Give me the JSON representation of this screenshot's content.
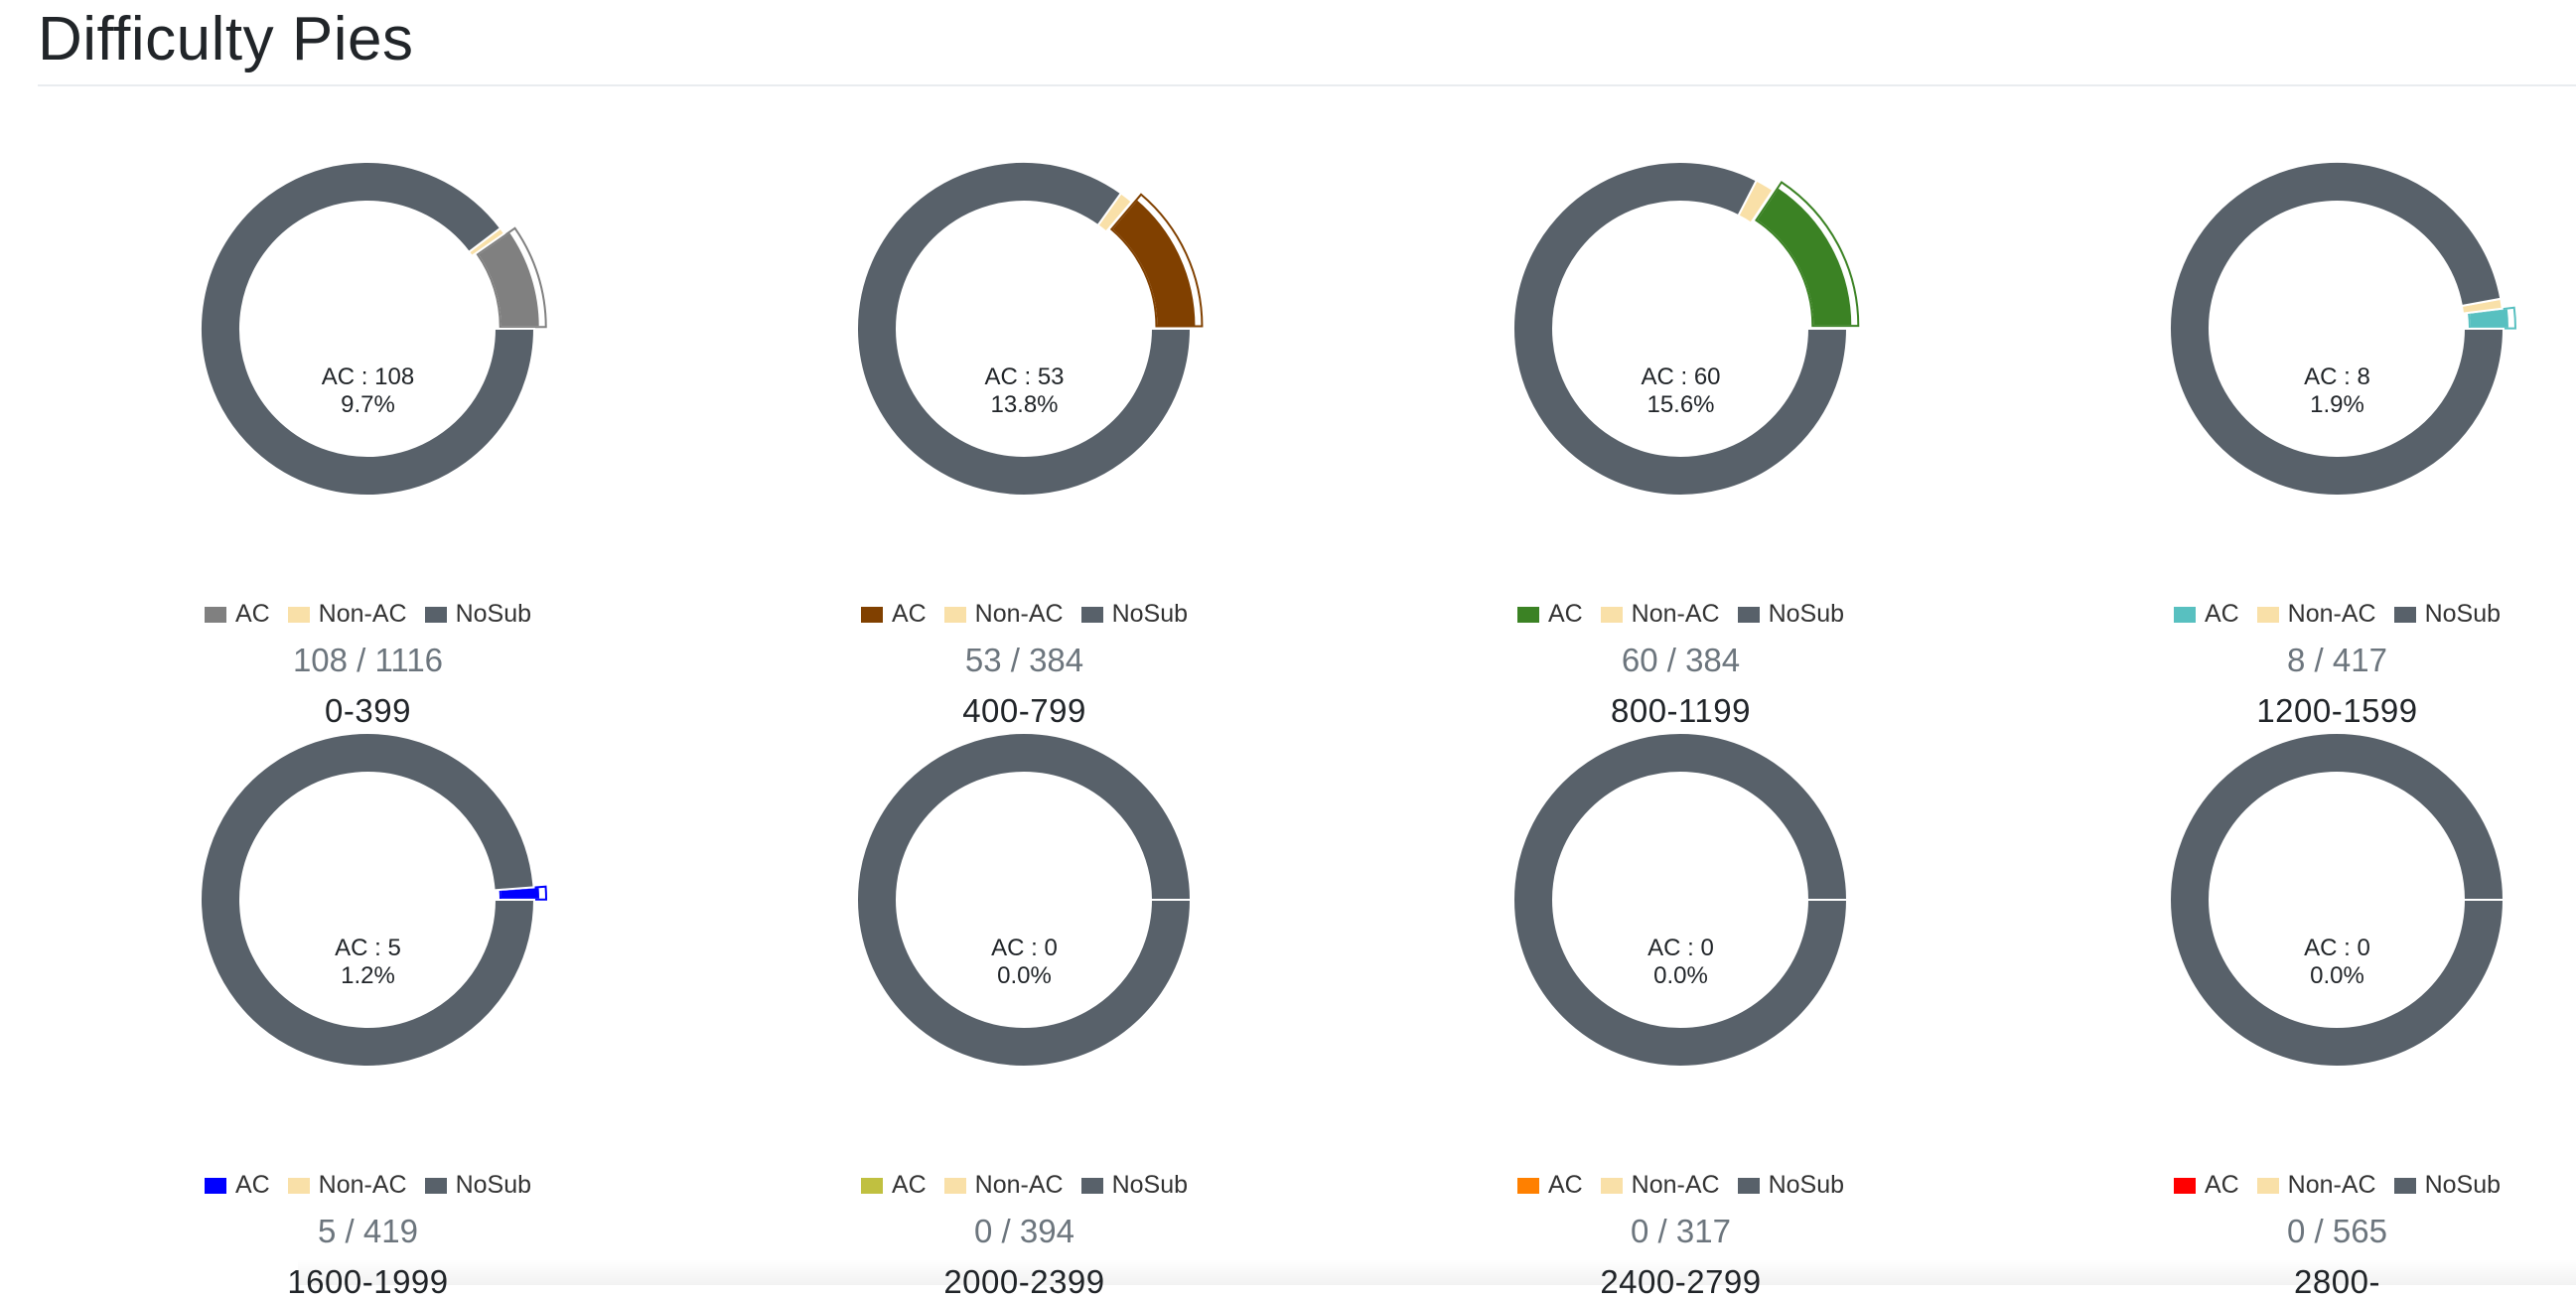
{
  "page": {
    "title": "Difficulty Pies"
  },
  "legend_labels": {
    "ac": "AC",
    "non_ac": "Non-AC",
    "nosub": "NoSub"
  },
  "colors": {
    "non_ac": "#f9e0a8",
    "nosub": "#58616a"
  },
  "pies": [
    {
      "range": "0-399",
      "ac_text": "AC : 108",
      "pct_text": "9.7%",
      "ratio_text": "108 / 1116",
      "ac_color": "#808080"
    },
    {
      "range": "400-799",
      "ac_text": "AC : 53",
      "pct_text": "13.8%",
      "ratio_text": "53 / 384",
      "ac_color": "#804000"
    },
    {
      "range": "800-1199",
      "ac_text": "AC : 60",
      "pct_text": "15.6%",
      "ratio_text": "60 / 384",
      "ac_color": "#3b8224"
    },
    {
      "range": "1200-1599",
      "ac_text": "AC : 8",
      "pct_text": "1.9%",
      "ratio_text": "8 / 417",
      "ac_color": "#58c0c0"
    },
    {
      "range": "1600-1999",
      "ac_text": "AC : 5",
      "pct_text": "1.2%",
      "ratio_text": "5 / 419",
      "ac_color": "#0000ff"
    },
    {
      "range": "2000-2399",
      "ac_text": "AC : 0",
      "pct_text": "0.0%",
      "ratio_text": "0 / 394",
      "ac_color": "#c0c040"
    },
    {
      "range": "2400-2799",
      "ac_text": "AC : 0",
      "pct_text": "0.0%",
      "ratio_text": "0 / 317",
      "ac_color": "#ff8000"
    },
    {
      "range": "2800-",
      "ac_text": "AC : 0",
      "pct_text": "0.0%",
      "ratio_text": "0 / 565",
      "ac_color": "#ff0000"
    }
  ],
  "chart_data": {
    "type": "pie",
    "title": "Difficulty Pies",
    "style": "donut",
    "legend": [
      "AC",
      "Non-AC",
      "NoSub"
    ],
    "charts": [
      {
        "label": "0-399",
        "ac": 108,
        "non_ac": 7,
        "nosub": 1001,
        "total": 1116
      },
      {
        "label": "400-799",
        "ac": 53,
        "non_ac": 5,
        "nosub": 326,
        "total": 384
      },
      {
        "label": "800-1199",
        "ac": 60,
        "non_ac": 7,
        "nosub": 317,
        "total": 384
      },
      {
        "label": "1200-1599",
        "ac": 8,
        "non_ac": 4,
        "nosub": 405,
        "total": 417
      },
      {
        "label": "1600-1999",
        "ac": 5,
        "non_ac": 0,
        "nosub": 414,
        "total": 419
      },
      {
        "label": "2000-2399",
        "ac": 0,
        "non_ac": 0,
        "nosub": 394,
        "total": 394
      },
      {
        "label": "2400-2799",
        "ac": 0,
        "non_ac": 0,
        "nosub": 317,
        "total": 317
      },
      {
        "label": "2800-",
        "ac": 0,
        "non_ac": 0,
        "nosub": 565,
        "total": 565
      }
    ]
  }
}
